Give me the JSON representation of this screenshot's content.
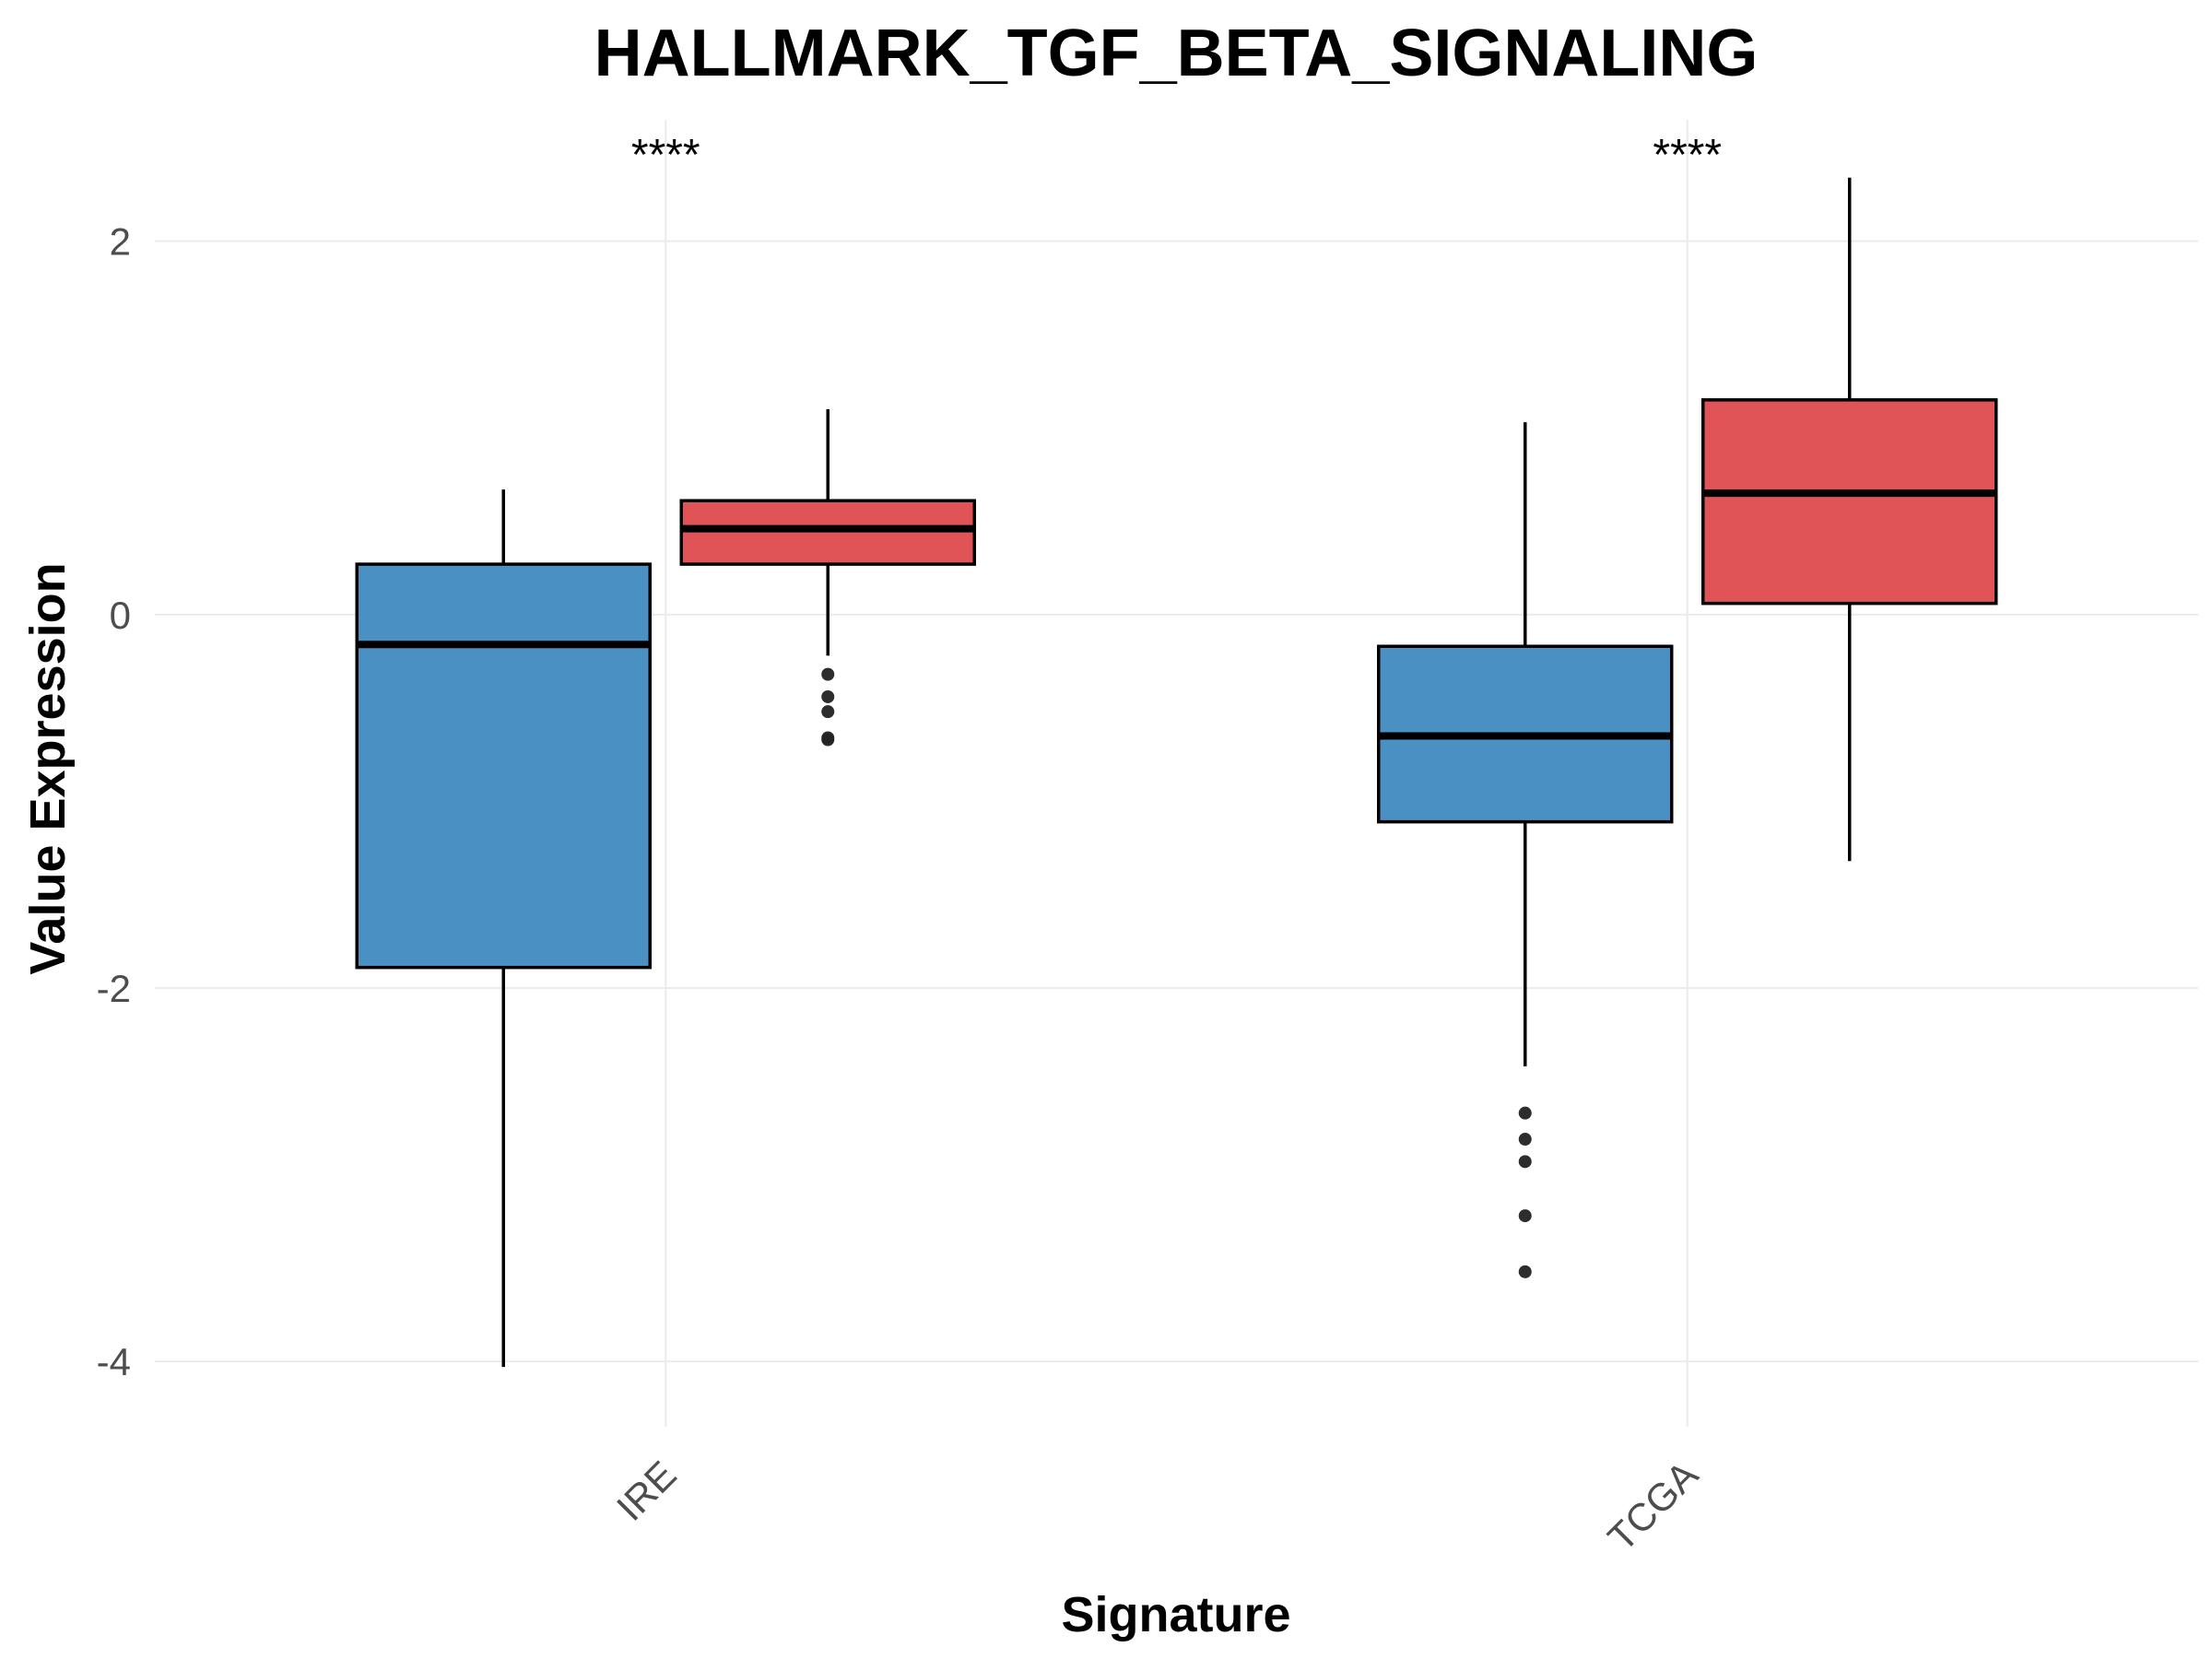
{
  "chart_data": {
    "type": "boxplot",
    "title": "HALLMARK_TGF_BETA_SIGNALING",
    "xlabel": "Signature",
    "ylabel": "Value Expression",
    "ylim": [
      -4.35,
      2.65
    ],
    "yticks": [
      2,
      0,
      -2,
      -4
    ],
    "ytick_labels": [
      "2",
      "0",
      "-2",
      "-4"
    ],
    "categories": [
      "IRE",
      "TCGA"
    ],
    "significance": [
      "****",
      "****"
    ],
    "grid": true,
    "legend": "none",
    "series": [
      {
        "color": "#4a90c2",
        "boxes": [
          {
            "whisker_low": -4.03,
            "q1": -1.89,
            "median": -0.16,
            "q3": 0.27,
            "whisker_high": 0.67,
            "outliers": []
          },
          {
            "whisker_low": -2.42,
            "q1": -1.11,
            "median": -0.65,
            "q3": -0.17,
            "whisker_high": 1.03,
            "outliers": [
              -2.67,
              -2.81,
              -2.93,
              -3.22,
              -3.52
            ]
          }
        ]
      },
      {
        "color": "#e05357",
        "boxes": [
          {
            "whisker_low": -0.22,
            "q1": 0.27,
            "median": 0.46,
            "q3": 0.61,
            "whisker_high": 1.1,
            "outliers": [
              -0.32,
              -0.44,
              -0.52,
              -0.66,
              -0.67
            ]
          },
          {
            "whisker_low": -1.32,
            "q1": 0.06,
            "median": 0.65,
            "q3": 1.15,
            "whisker_high": 2.34,
            "outliers": []
          }
        ]
      }
    ]
  }
}
